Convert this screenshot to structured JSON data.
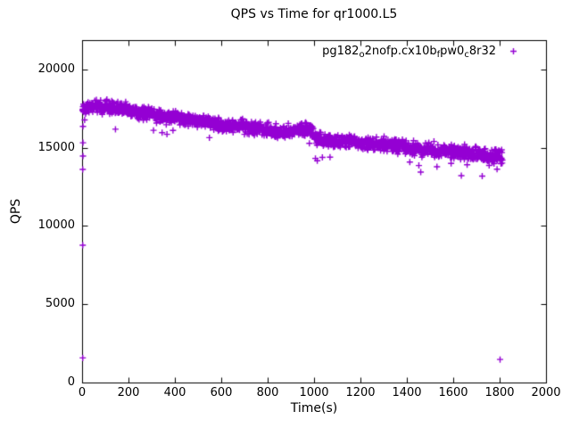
{
  "figure": {
    "background": "#ffffff",
    "border_color": "#000000"
  },
  "chart_data": {
    "type": "scatter",
    "title": "QPS vs Time for qr1000.L5",
    "xlabel": "Time(s)",
    "ylabel": "QPS",
    "xlim": [
      0,
      2000
    ],
    "ylim": [
      0,
      21880
    ],
    "x_ticks": [
      0,
      200,
      400,
      600,
      800,
      1000,
      1200,
      1400,
      1600,
      1800,
      2000
    ],
    "y_ticks": [
      0,
      5000,
      10000,
      15000,
      20000
    ],
    "grid": false,
    "legend_position": "top-right-inside",
    "series": [
      {
        "name": "pg182_o2nofp.cx10b_fpw0_c8r32",
        "name_segments": [
          {
            "text": "pg182"
          },
          {
            "text": "o",
            "sub": true
          },
          {
            "text": "2nofp.cx10b"
          },
          {
            "text": "f",
            "sub": true
          },
          {
            "text": "pw0"
          },
          {
            "text": "c",
            "sub": true
          },
          {
            "text": "8r32"
          }
        ],
        "color": "#9400D3",
        "marker": "plus",
        "duration_s": 1810,
        "sample_interval_s": 1,
        "trend": [
          [
            0,
            17550
          ],
          [
            40,
            17700
          ],
          [
            120,
            17600
          ],
          [
            200,
            17400
          ],
          [
            300,
            17200
          ],
          [
            400,
            17000
          ],
          [
            500,
            16800
          ],
          [
            600,
            16500
          ],
          [
            700,
            16400
          ],
          [
            800,
            16150
          ],
          [
            860,
            16000
          ],
          [
            920,
            16150
          ],
          [
            960,
            16250
          ],
          [
            990,
            16150
          ],
          [
            1010,
            15600
          ],
          [
            1060,
            15480
          ],
          [
            1150,
            15450
          ],
          [
            1250,
            15300
          ],
          [
            1350,
            15150
          ],
          [
            1450,
            14980
          ],
          [
            1550,
            14850
          ],
          [
            1650,
            14700
          ],
          [
            1810,
            14450
          ]
        ],
        "noise_sd": 200,
        "low_outlier_rate": 0.013,
        "low_outlier_range": [
          500,
          1300
        ],
        "outliers": [
          [
            1,
            1600
          ],
          [
            1,
            8800
          ],
          [
            1,
            13650
          ],
          [
            2,
            14500
          ],
          [
            2,
            15350
          ],
          [
            2,
            16400
          ],
          [
            1004,
            14350
          ],
          [
            1012,
            14200
          ],
          [
            1800,
            1500
          ]
        ]
      }
    ]
  }
}
